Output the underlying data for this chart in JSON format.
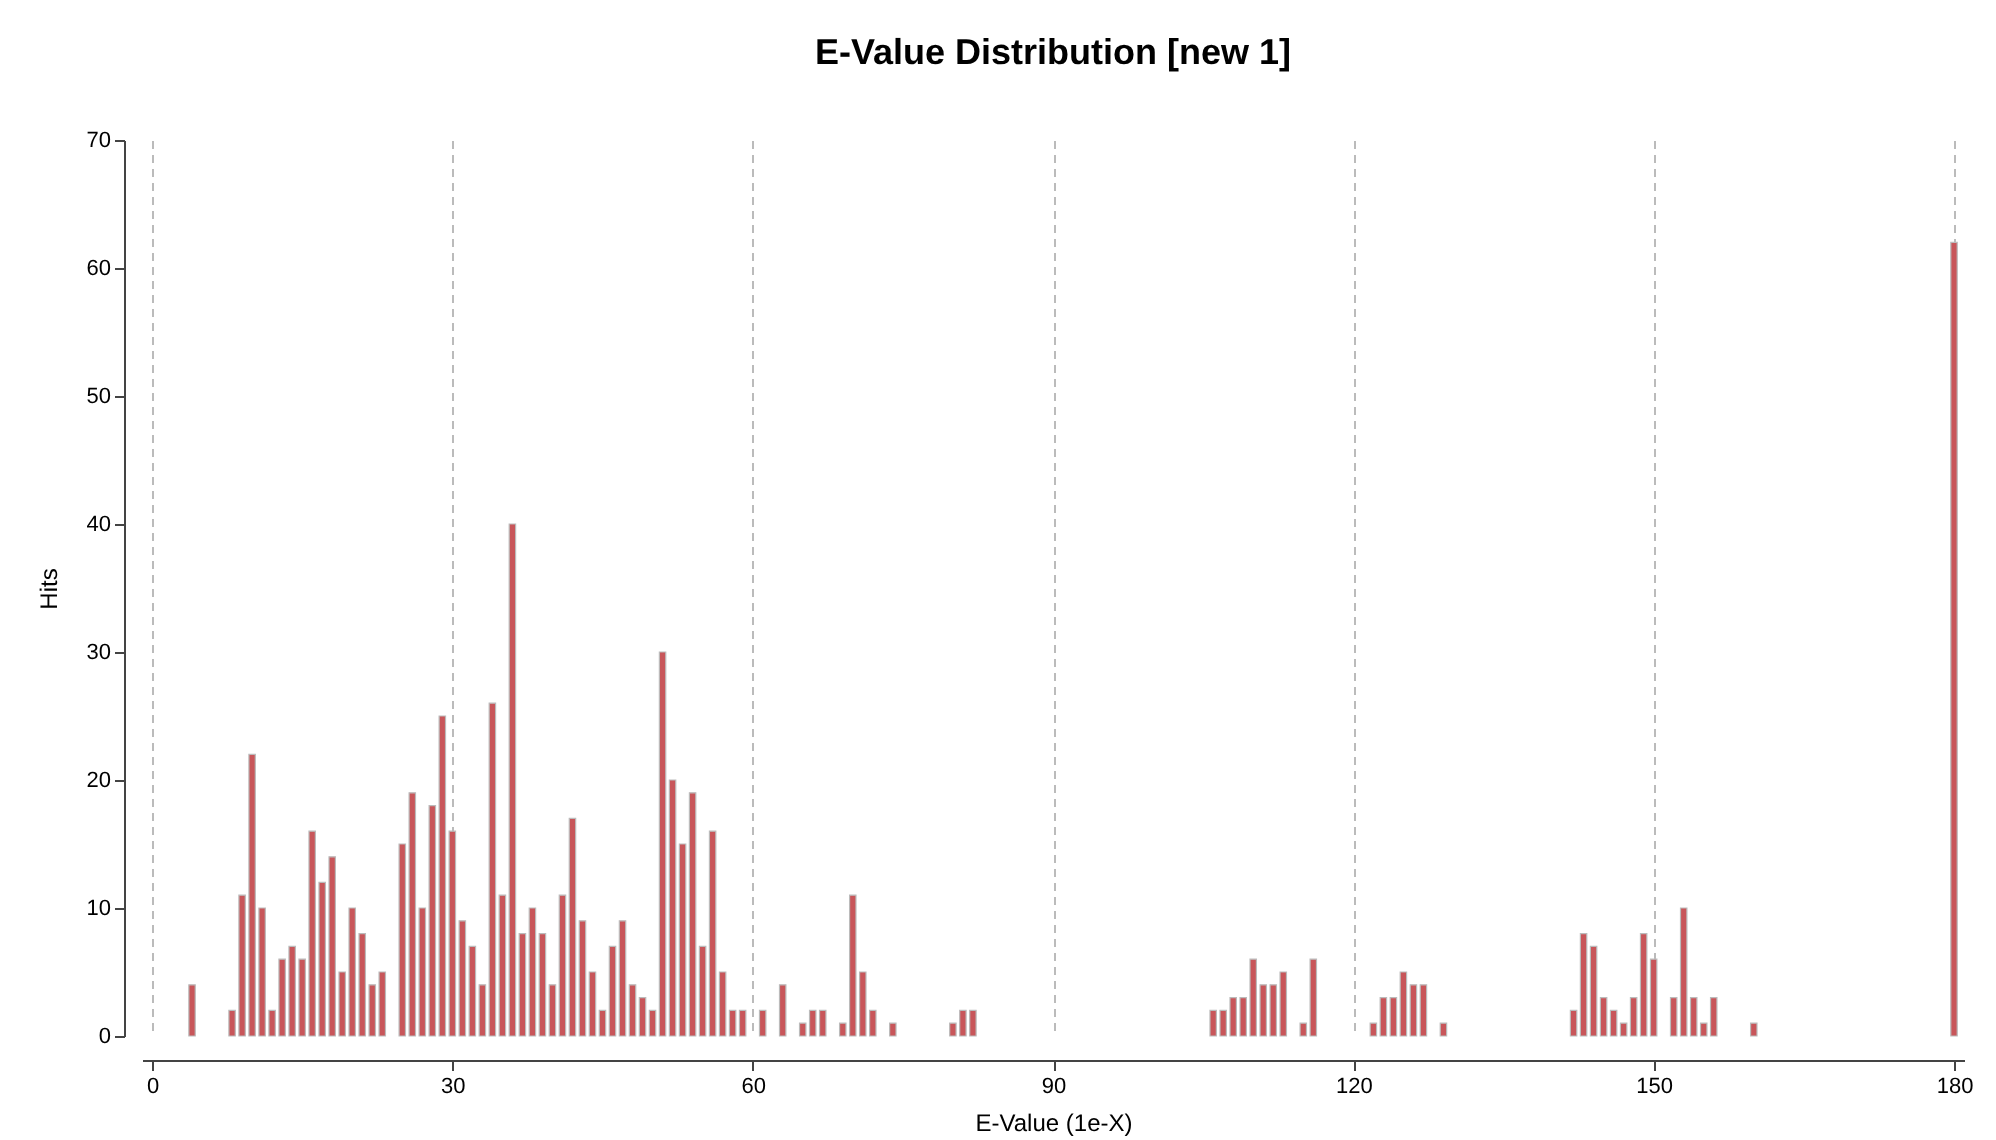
{
  "chart_data": {
    "type": "bar",
    "title": "E-Value Distribution [new 1]",
    "xlabel": "E-Value (1e-X)",
    "ylabel": "Hits",
    "x": [
      4,
      8,
      9,
      10,
      11,
      12,
      13,
      14,
      15,
      16,
      17,
      18,
      19,
      20,
      21,
      22,
      23,
      25,
      26,
      27,
      28,
      29,
      30,
      31,
      32,
      33,
      34,
      35,
      36,
      37,
      38,
      39,
      40,
      41,
      42,
      43,
      44,
      45,
      46,
      47,
      48,
      49,
      50,
      51,
      52,
      53,
      54,
      55,
      56,
      57,
      58,
      59,
      61,
      63,
      65,
      66,
      67,
      69,
      70,
      71,
      72,
      74,
      80,
      81,
      82,
      106,
      107,
      108,
      109,
      110,
      111,
      112,
      113,
      115,
      116,
      122,
      123,
      124,
      125,
      126,
      127,
      129,
      142,
      143,
      144,
      145,
      146,
      147,
      148,
      149,
      150,
      152,
      153,
      154,
      155,
      156,
      160,
      180
    ],
    "series": [
      {
        "color": "#c8565a",
        "values": [
          4,
          2,
          11,
          22,
          10,
          2,
          6,
          7,
          6,
          16,
          12,
          14,
          5,
          10,
          8,
          4,
          5,
          15,
          19,
          10,
          18,
          25,
          16,
          9,
          7,
          4,
          26,
          11,
          40,
          8,
          10,
          8,
          4,
          11,
          17,
          9,
          5,
          2,
          7,
          9,
          4,
          3,
          2,
          30,
          20,
          15,
          19,
          7,
          16,
          5,
          2,
          2,
          2,
          4,
          1,
          2,
          2,
          1,
          11,
          5,
          2,
          1,
          1,
          2,
          2,
          2,
          2,
          3,
          3,
          6,
          4,
          4,
          5,
          1,
          6,
          1,
          3,
          3,
          5,
          4,
          4,
          1,
          2,
          8,
          7,
          3,
          2,
          1,
          3,
          8,
          6,
          3,
          10,
          3,
          1,
          3,
          1,
          62
        ]
      }
    ],
    "xlim": [
      0,
      180
    ],
    "xticks": [
      0,
      30,
      60,
      90,
      120,
      150,
      180
    ],
    "ylim": [
      0,
      70
    ],
    "yticks": [
      0,
      10,
      20,
      30,
      40,
      50,
      60,
      70
    ],
    "grid": "x"
  }
}
